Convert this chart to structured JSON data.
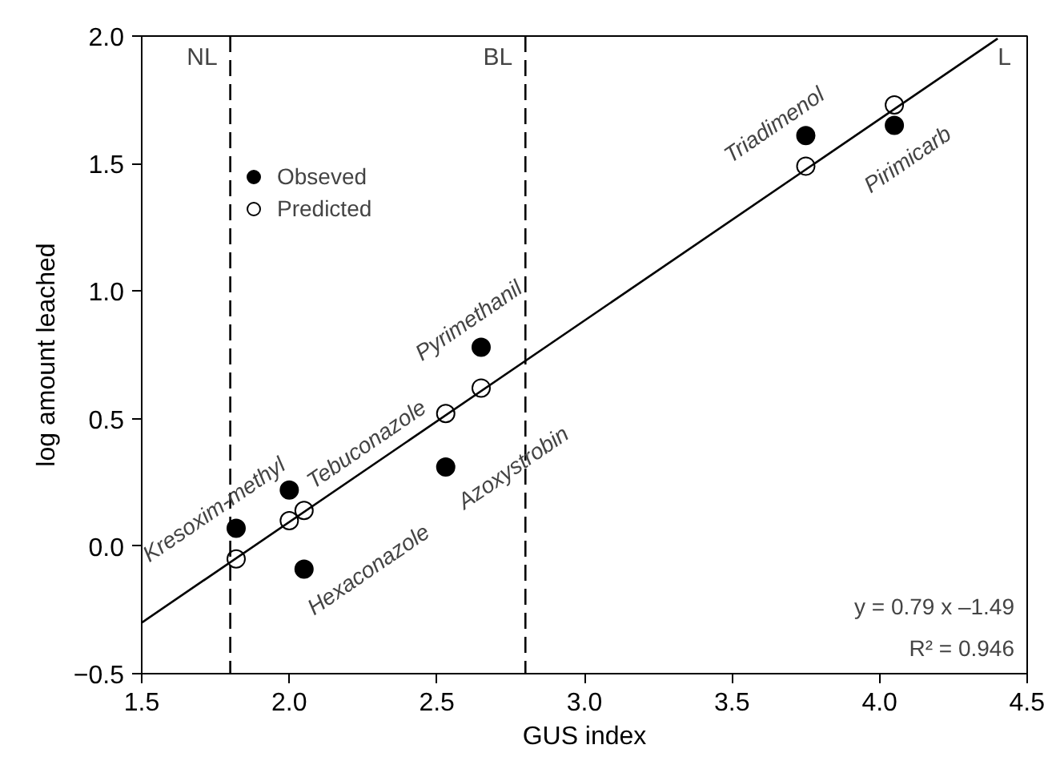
{
  "chart_data": {
    "type": "scatter",
    "xlabel": "GUS index",
    "ylabel": "log amount leached",
    "xlim": [
      1.5,
      4.5
    ],
    "ylim": [
      -0.5,
      2.0
    ],
    "xticks": [
      {
        "value": 1.5,
        "label": "1.5"
      },
      {
        "value": 2.0,
        "label": "2.0"
      },
      {
        "value": 2.5,
        "label": "2.5"
      },
      {
        "value": 3.0,
        "label": "3.0"
      },
      {
        "value": 3.5,
        "label": "3.5"
      },
      {
        "value": 4.0,
        "label": "4.0"
      },
      {
        "value": 4.5,
        "label": "4.5"
      }
    ],
    "yticks": [
      {
        "value": -0.5,
        "label": "−0.5"
      },
      {
        "value": 0.0,
        "label": "0.0"
      },
      {
        "value": 0.5,
        "label": "0.5"
      },
      {
        "value": 1.0,
        "label": "1.0"
      },
      {
        "value": 1.5,
        "label": "1.5"
      },
      {
        "value": 2.0,
        "label": "2.0"
      }
    ],
    "grid": false,
    "legend": "top left",
    "marker": "circle",
    "series": [
      {
        "name": "Obseved",
        "color": "#000000",
        "x": [
          1.82,
          2.0,
          2.05,
          2.53,
          2.65,
          3.75,
          4.05
        ],
        "values": [
          0.07,
          0.22,
          -0.09,
          0.31,
          0.78,
          1.61,
          1.65
        ]
      },
      {
        "name": "Predicted",
        "color": "#ffffff",
        "x": [
          1.82,
          2.0,
          2.05,
          2.53,
          2.65,
          3.75,
          4.05
        ],
        "values": [
          -0.05,
          0.1,
          0.14,
          0.52,
          0.62,
          1.49,
          1.73
        ]
      },
      {
        "type": "line",
        "color": "#000000",
        "x": [
          1.5,
          4.4
        ],
        "values": [
          -0.3,
          1.99
        ],
        "line_style": "solid",
        "marker": "none"
      }
    ],
    "ref_lines": [
      {
        "axis": "x",
        "value": 1.8,
        "label": "NL",
        "line_style": "dashed"
      },
      {
        "axis": "x",
        "value": 2.8,
        "label": "BL",
        "line_style": "dashed"
      }
    ],
    "annotations": [
      {
        "text": "Kresoxim-methyl",
        "x": 1.82,
        "y": 0.07
      },
      {
        "text": "Tebuconazole",
        "x": 2.0,
        "y": 0.22
      },
      {
        "text": "Hexaconazole",
        "x": 2.05,
        "y": -0.09
      },
      {
        "text": "Azoxystrobin",
        "x": 2.53,
        "y": 0.31
      },
      {
        "text": "Pyrimethanil",
        "x": 2.65,
        "y": 0.78
      },
      {
        "text": "Triadimenol",
        "x": 3.75,
        "y": 1.61
      },
      {
        "text": "Pirimicarb",
        "x": 4.05,
        "y": 1.65
      },
      "L",
      "y = 0.79 x –1.49",
      "R² = 0.946"
    ]
  }
}
